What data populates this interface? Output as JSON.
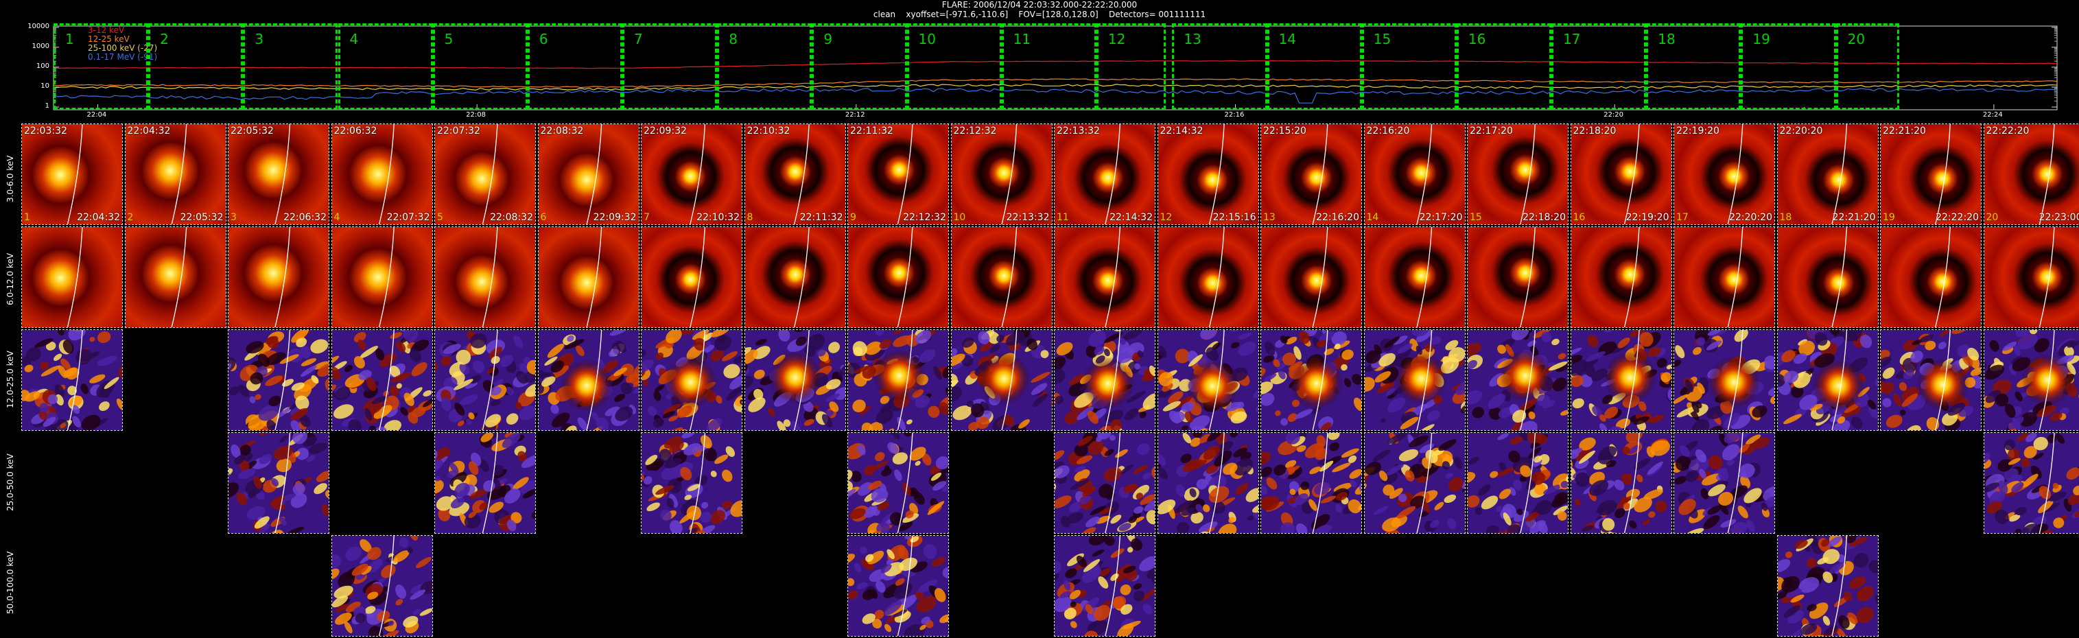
{
  "header": {
    "title_line1": "FLARE: 2006/12/04 22:03:32.000-22:22:20.000",
    "title_line2": "clean    xyoffset=[-971.6,-110.6]    FOV=[128.0,128.0]    Detectors= 001111111"
  },
  "lightcurve": {
    "y_ticks": [
      "10000",
      "1000",
      "100",
      "10",
      "1"
    ],
    "x_ticks": [
      "22:04",
      "22:08",
      "22:12",
      "22:16",
      "22:20",
      "22:24"
    ],
    "legend": [
      {
        "label": "3-12 keV",
        "color": "#e02020"
      },
      {
        "label": "12-25 keV",
        "color": "#f08030"
      },
      {
        "label": "25-100 keV (-27)",
        "color": "#e8d040"
      },
      {
        "label": "0.1-17 MeV (-91)",
        "color": "#3a70e0"
      }
    ],
    "interval_numbers": [
      "1",
      "2",
      "3",
      "4",
      "5",
      "6",
      "7",
      "8",
      "9",
      "10",
      "11",
      "12",
      "13",
      "14",
      "15",
      "16",
      "17",
      "18",
      "19",
      "20"
    ],
    "colors": {
      "interval_box": "#00e000",
      "grid": "#aaaaaa"
    }
  },
  "bands": [
    {
      "label": "3.0-6.0 keV"
    },
    {
      "label": "6.0-12.0 keV"
    },
    {
      "label": "12.0-25.0 keV"
    },
    {
      "label": "25.0-50.0 keV"
    },
    {
      "label": "50.0-100.0 keV"
    }
  ],
  "intervals": [
    {
      "num": "1",
      "start": "22:03:32",
      "end": "22:04:32"
    },
    {
      "num": "2",
      "start": "22:04:32",
      "end": "22:05:32"
    },
    {
      "num": "3",
      "start": "22:05:32",
      "end": "22:06:32"
    },
    {
      "num": "4",
      "start": "22:06:32",
      "end": "22:07:32"
    },
    {
      "num": "5",
      "start": "22:07:32",
      "end": "22:08:32"
    },
    {
      "num": "6",
      "start": "22:08:32",
      "end": "22:09:32"
    },
    {
      "num": "7",
      "start": "22:09:32",
      "end": "22:10:32"
    },
    {
      "num": "8",
      "start": "22:10:32",
      "end": "22:11:32"
    },
    {
      "num": "9",
      "start": "22:11:32",
      "end": "22:12:32"
    },
    {
      "num": "10",
      "start": "22:12:32",
      "end": "22:13:32"
    },
    {
      "num": "11",
      "start": "22:13:32",
      "end": "22:14:32"
    },
    {
      "num": "12",
      "start": "22:14:32",
      "end": "22:15:16"
    },
    {
      "num": "13",
      "start": "22:15:20",
      "end": "22:16:20"
    },
    {
      "num": "14",
      "start": "22:16:20",
      "end": "22:17:20"
    },
    {
      "num": "15",
      "start": "22:17:20",
      "end": "22:18:20"
    },
    {
      "num": "16",
      "start": "22:18:20",
      "end": "22:19:20"
    },
    {
      "num": "17",
      "start": "22:19:20",
      "end": "22:20:20"
    },
    {
      "num": "18",
      "start": "22:20:20",
      "end": "22:21:20"
    },
    {
      "num": "19",
      "start": "22:21:20",
      "end": "22:22:20"
    },
    {
      "num": "20",
      "start": "22:22:20",
      "end": "22:23:00"
    }
  ],
  "band_availability": [
    [
      1,
      1,
      1,
      1,
      1,
      1,
      1,
      1,
      1,
      1,
      1,
      1,
      1,
      1,
      1,
      1,
      1,
      1,
      1,
      1
    ],
    [
      1,
      1,
      1,
      1,
      1,
      1,
      1,
      1,
      1,
      1,
      1,
      1,
      1,
      1,
      1,
      1,
      1,
      1,
      1,
      1
    ],
    [
      1,
      0,
      1,
      1,
      1,
      1,
      1,
      1,
      1,
      1,
      1,
      1,
      1,
      1,
      1,
      1,
      1,
      1,
      1,
      1
    ],
    [
      0,
      0,
      1,
      0,
      1,
      0,
      1,
      0,
      1,
      0,
      1,
      1,
      1,
      1,
      1,
      1,
      1,
      0,
      0,
      1
    ],
    [
      0,
      0,
      0,
      1,
      0,
      0,
      0,
      0,
      1,
      0,
      1,
      0,
      0,
      0,
      0,
      0,
      0,
      1,
      0,
      0
    ]
  ],
  "image_styles": {
    "smooth_bands": [
      0,
      1
    ],
    "noisy_bands": [
      2,
      3,
      4
    ],
    "limb_color": "#ffffff",
    "cell_border_color": "#dddddd"
  }
}
